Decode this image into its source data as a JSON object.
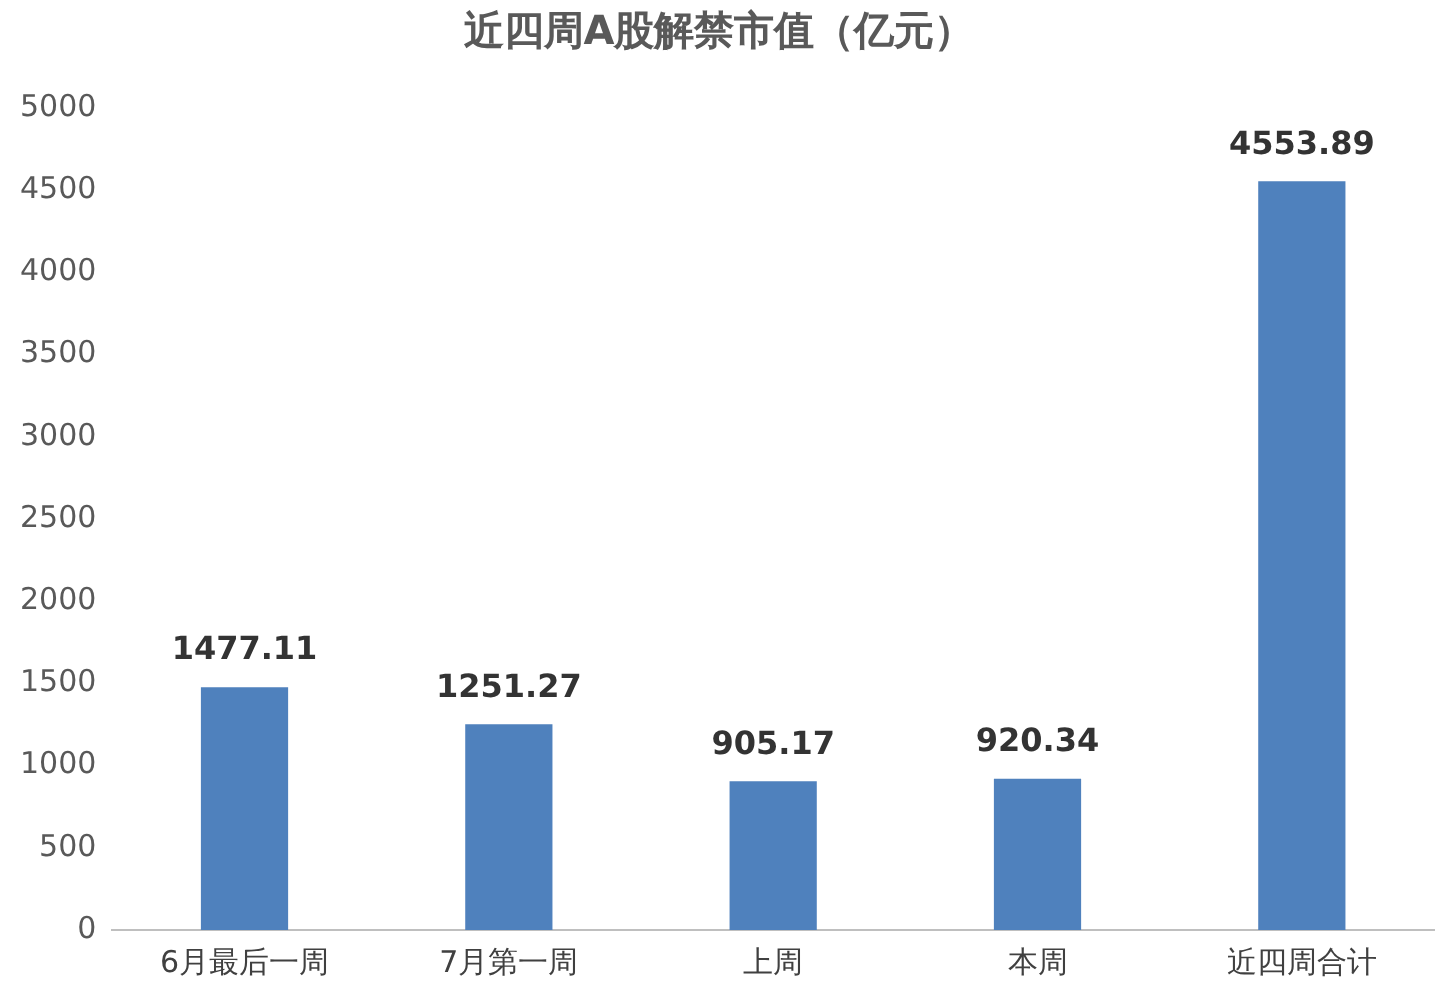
{
  "chart_data": {
    "type": "bar",
    "title": "近四周A股解禁市值（亿元）",
    "categories": [
      "6月最后一周",
      "7月第一周",
      "上周",
      "本周",
      "近四周合计"
    ],
    "values": [
      1477.11,
      1251.27,
      905.17,
      920.34,
      4553.89
    ],
    "color": "#4f81bd",
    "ylim": [
      0,
      5000
    ],
    "yticks": [
      0,
      500,
      1000,
      1500,
      2000,
      2500,
      3000,
      3500,
      4000,
      4500,
      5000
    ],
    "grid": false,
    "legend": false,
    "data_labels": true
  }
}
